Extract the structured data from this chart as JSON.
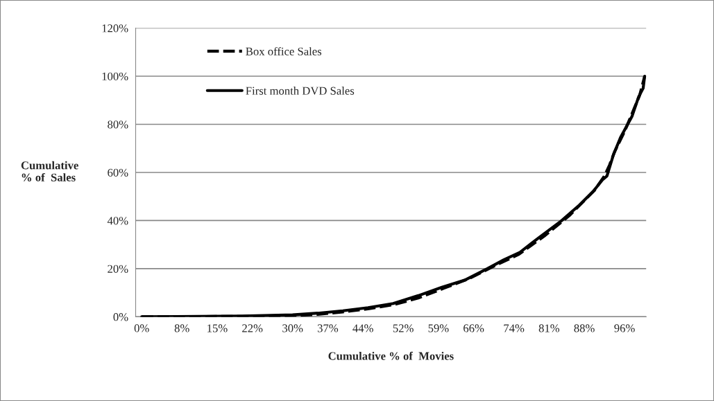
{
  "chart_data": {
    "type": "line",
    "xlabel": "Cumulative % of  Movies",
    "ylabel": "Cumulative\n% of  Sales",
    "xlim": [
      -1.2,
      100.3
    ],
    "ylim": [
      0,
      120
    ],
    "xticks": [
      {
        "value": 0,
        "label": "0%"
      },
      {
        "value": 8,
        "label": "8%"
      },
      {
        "value": 15,
        "label": "15%"
      },
      {
        "value": 22,
        "label": "22%"
      },
      {
        "value": 30,
        "label": "30%"
      },
      {
        "value": 37,
        "label": "37%"
      },
      {
        "value": 44,
        "label": "44%"
      },
      {
        "value": 52,
        "label": "52%"
      },
      {
        "value": 59,
        "label": "59%"
      },
      {
        "value": 66,
        "label": "66%"
      },
      {
        "value": 74,
        "label": "74%"
      },
      {
        "value": 81,
        "label": "81%"
      },
      {
        "value": 88,
        "label": "88%"
      },
      {
        "value": 96,
        "label": "96%"
      }
    ],
    "yticks": [
      {
        "value": 0,
        "label": "0%"
      },
      {
        "value": 20,
        "label": "20%"
      },
      {
        "value": 40,
        "label": "40%"
      },
      {
        "value": 60,
        "label": "60%"
      },
      {
        "value": 80,
        "label": "80%"
      },
      {
        "value": 100,
        "label": "100%"
      },
      {
        "value": 120,
        "label": "120%"
      }
    ],
    "grid": "y",
    "legend": "top left",
    "series": [
      {
        "name": "Box office Sales",
        "color": "#000000",
        "line_style": "dashed",
        "x": [
          0,
          20,
          30,
          35,
          40,
          45,
          50,
          55,
          60,
          65,
          70,
          75,
          80,
          85,
          90,
          92,
          93,
          94,
          96,
          98,
          99,
          100
        ],
        "values": [
          0,
          0.2,
          0.5,
          1,
          2,
          3.3,
          5,
          7.8,
          11.8,
          15.8,
          21,
          26,
          33.5,
          42,
          52.5,
          58.5,
          63,
          68.5,
          77,
          87,
          92,
          100
        ]
      },
      {
        "name": "First month DVD Sales",
        "color": "#000000",
        "line_style": "solid",
        "x": [
          0,
          20,
          30,
          35,
          40,
          45,
          50,
          55,
          59.7,
          64.2,
          68.8,
          72,
          75.2,
          78.8,
          83.4,
          87,
          89.8,
          91.6,
          92.5,
          93.8,
          95.2,
          97.5,
          98.8,
          99.7,
          100
        ],
        "values": [
          0,
          0.3,
          0.8,
          1.5,
          2.5,
          3.8,
          5.5,
          8.8,
          12.3,
          15.2,
          20.1,
          23.7,
          26.8,
          32.6,
          39.8,
          46.4,
          52.2,
          56.9,
          58.5,
          67.4,
          74.5,
          83.4,
          91.4,
          95,
          100
        ]
      }
    ]
  }
}
